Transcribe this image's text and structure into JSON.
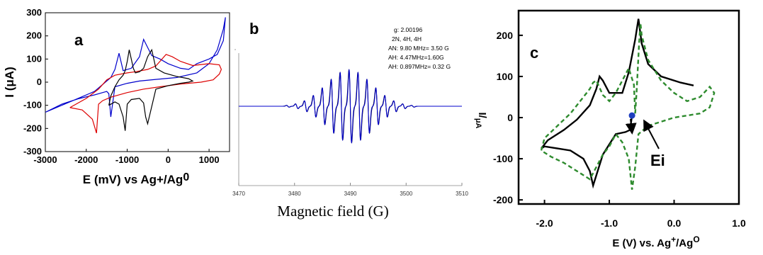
{
  "chart_data": [
    {
      "type": "line",
      "panel_label": "a",
      "xlabel": "E (mV) vs Ag+/Ag",
      "xlabel_sup": "0",
      "ylabel": "I (μA)",
      "xlim": [
        -3000,
        1500
      ],
      "ylim": [
        -300,
        300
      ],
      "xticks": [
        -3000,
        -2000,
        -1000,
        0,
        1000
      ],
      "yticks": [
        -300,
        -200,
        -100,
        0,
        100,
        200,
        300
      ],
      "series": [
        {
          "color": "#0000cc",
          "x": [
            -3000,
            -2600,
            -2200,
            -1800,
            -1600,
            -1500,
            -1450,
            -1400,
            -1300,
            -1000,
            -700,
            -300,
            200,
            700,
            1000,
            1200,
            1350,
            1400,
            1350,
            1200,
            1000,
            700,
            500,
            300,
            0,
            -200,
            -400,
            -500,
            -600,
            -700,
            -900,
            -1100,
            -1200,
            -1300,
            -1400,
            -1800,
            -2200,
            -2600,
            -3000
          ],
          "y": [
            -130,
            -95,
            -72,
            -55,
            -45,
            -40,
            -50,
            -150,
            -20,
            -5,
            5,
            12,
            20,
            40,
            80,
            140,
            230,
            280,
            180,
            120,
            100,
            80,
            55,
            60,
            80,
            100,
            115,
            150,
            185,
            110,
            60,
            50,
            125,
            55,
            20,
            -40,
            -70,
            -100,
            -130
          ]
        },
        {
          "color": "#dd0000",
          "x": [
            -2400,
            -2100,
            -1850,
            -1750,
            -1700,
            -1600,
            -1400,
            -1000,
            -600,
            -200,
            300,
            800,
            1100,
            1250,
            1300,
            1250,
            1000,
            600,
            300,
            100,
            -50,
            -200,
            -300,
            -500,
            -800,
            -1000,
            -1300,
            -1500,
            -1700,
            -2000,
            -2400
          ],
          "y": [
            -110,
            -120,
            -160,
            -220,
            -95,
            -80,
            -65,
            -45,
            -30,
            -20,
            -8,
            0,
            10,
            35,
            55,
            75,
            80,
            72,
            90,
            110,
            120,
            90,
            70,
            55,
            45,
            40,
            30,
            10,
            -30,
            -70,
            -110
          ]
        },
        {
          "color": "#000000",
          "x": [
            -1450,
            -1300,
            -1200,
            -1100,
            -1050,
            -1000,
            -900,
            -700,
            -600,
            -550,
            -500,
            -300,
            0,
            300,
            500,
            600,
            500,
            200,
            -100,
            -300,
            -400,
            -500,
            -600,
            -700,
            -800,
            -850,
            -900,
            -950,
            -1000,
            -1050,
            -1100,
            -1200,
            -1300,
            -1400,
            -1450
          ],
          "y": [
            -100,
            -85,
            -95,
            -150,
            -210,
            -95,
            -75,
            -70,
            -90,
            -150,
            -180,
            -30,
            -15,
            -5,
            0,
            5,
            15,
            25,
            40,
            60,
            140,
            110,
            60,
            45,
            40,
            60,
            100,
            140,
            90,
            50,
            30,
            10,
            -20,
            -60,
            -100
          ]
        }
      ]
    },
    {
      "type": "line",
      "panel_label": "b",
      "xlabel": "Magnetic field (G)",
      "xlim": [
        3470,
        3510
      ],
      "xticks": [
        3470,
        3480,
        3490,
        3500,
        3510
      ],
      "xtick_labels": [
        "3470",
        "3480",
        "3490",
        "3500",
        "3510"
      ],
      "annotations": [
        "g:   2.00196",
        "2N, 4H, 4H",
        "AN:  9.80 MHz= 3.50 G",
        "AH:  4.47MHz=1.60G",
        "AH:  0.897MHz= 0.32 G"
      ],
      "spectrum": {
        "center": 3490,
        "line_spacing": 1.6,
        "line_count": 15,
        "envelope_width": 5.8,
        "amplitude": 1.0
      },
      "series": [
        {
          "color": "#000000"
        },
        {
          "color": "#0000cc"
        }
      ]
    },
    {
      "type": "line",
      "panel_label": "c",
      "xlabel": "E (V) vs. Ag",
      "xlabel_sup1": "+",
      "xlabel_mid": "/Ag",
      "xlabel_sup2": "O",
      "ylabel": "I/",
      "ylabel_sub": "μA",
      "xlim": [
        -2.4,
        1.0
      ],
      "ylim": [
        -210,
        260
      ],
      "xticks": [
        -2.0,
        -1.0,
        0.0,
        1.0
      ],
      "xtick_labels": [
        "-2.0",
        "-1.0",
        "0.0",
        "1.0"
      ],
      "yticks": [
        -200,
        -100,
        0,
        100,
        200
      ],
      "annotations": [
        "Ei"
      ],
      "initial_point": {
        "x": -0.65,
        "y": 5,
        "color": "#1f3fbf"
      },
      "series": [
        {
          "color": "#000000",
          "style": "solid",
          "x": [
            -0.65,
            -0.68,
            -0.75,
            -0.9,
            -1.1,
            -1.2,
            -1.25,
            -1.3,
            -1.4,
            -1.6,
            -1.8,
            -2.0,
            -2.05,
            -1.95,
            -1.7,
            -1.5,
            -1.3,
            -1.2,
            -1.15,
            -1.1,
            -1.0,
            -0.8,
            -0.7,
            -0.6,
            -0.55,
            -0.5,
            -0.4,
            -0.2,
            0.1,
            0.3
          ],
          "y": [
            5,
            -30,
            -35,
            -40,
            -90,
            -140,
            -165,
            -130,
            -100,
            -80,
            -75,
            -70,
            -75,
            -55,
            -30,
            -5,
            30,
            70,
            100,
            90,
            60,
            60,
            110,
            190,
            240,
            180,
            130,
            100,
            85,
            78
          ]
        },
        {
          "color": "#2e8b2e",
          "style": "dashed",
          "x": [
            -0.6,
            -0.58,
            -0.56,
            -0.54,
            -0.52,
            -0.5,
            -0.4,
            -0.2,
            0.0,
            0.2,
            0.4,
            0.55,
            0.62,
            0.55,
            0.4,
            0.2,
            0.0,
            -0.2,
            -0.4,
            -0.55,
            -0.6,
            -0.65,
            -0.7,
            -0.8,
            -0.9,
            -1.0,
            -1.1,
            -1.2,
            -1.3,
            -1.5,
            -1.7,
            -1.9,
            -2.05,
            -2.0,
            -1.8,
            -1.6,
            -1.4,
            -1.3,
            -1.25,
            -1.2,
            -1.1,
            -1.0,
            -0.9,
            -0.8,
            -0.7,
            -0.62,
            -0.6
          ],
          "y": [
            10,
            60,
            120,
            180,
            230,
            200,
            140,
            90,
            60,
            40,
            50,
            75,
            60,
            25,
            10,
            5,
            0,
            -10,
            -20,
            -40,
            -120,
            -175,
            -100,
            -60,
            -40,
            -70,
            -90,
            -120,
            -150,
            -130,
            -110,
            -95,
            -80,
            -50,
            -20,
            10,
            50,
            70,
            85,
            90,
            55,
            40,
            60,
            90,
            120,
            80,
            10
          ]
        }
      ]
    }
  ]
}
